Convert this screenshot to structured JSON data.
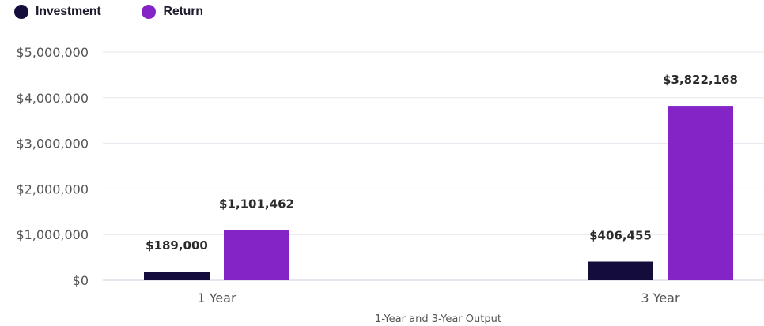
{
  "chart_data": {
    "type": "bar",
    "categories": [
      "1 Year",
      "3 Year"
    ],
    "series": [
      {
        "name": "Investment",
        "values": [
          189000,
          406455
        ],
        "labels": [
          "$189,000",
          "$406,455"
        ],
        "color": "#140c3a"
      },
      {
        "name": "Return",
        "values": [
          1101462,
          3822168
        ],
        "labels": [
          "$1,101,462",
          "$3,822,168"
        ],
        "color": "#8424c7"
      }
    ],
    "xlabel": "1-Year and 3-Year Output",
    "ylabel": "",
    "ylim": [
      0,
      5000000
    ],
    "yticks": [
      0,
      1000000,
      2000000,
      3000000,
      4000000,
      5000000
    ],
    "ytick_labels": [
      "$0",
      "$1,000,000",
      "$2,000,000",
      "$3,000,000",
      "$4,000,000",
      "$5,000,000"
    ],
    "grid": true,
    "legend_position": "top-left",
    "colors": {
      "grid": "#e3e8ef",
      "axis": "#c7d1de",
      "tick_text": "#555555",
      "data_label": "#2b2b2b",
      "xlabel": "#555555"
    }
  }
}
